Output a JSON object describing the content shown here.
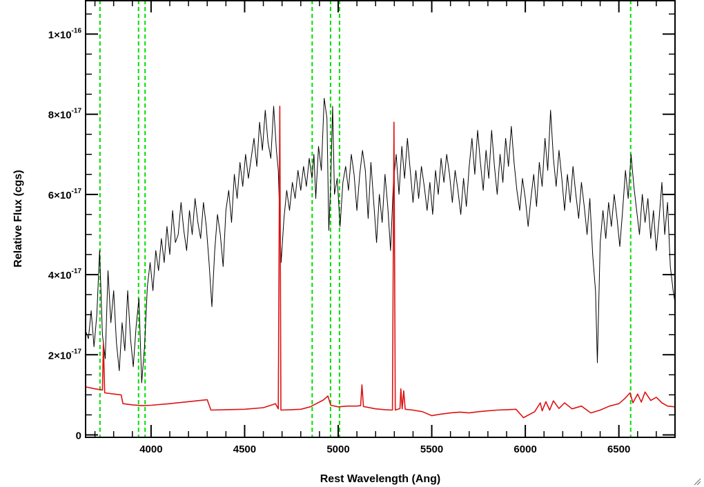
{
  "chart_data": {
    "type": "line",
    "xlabel": "Rest Wavelength (Ang)",
    "ylabel": "Relative Flux (cgs)",
    "xlim": [
      3650,
      6800
    ],
    "ylim": [
      -6e-19,
      1.085e-16
    ],
    "x_ticks": [
      {
        "value": 4000,
        "label": "4000"
      },
      {
        "value": 4500,
        "label": "4500"
      },
      {
        "value": 5000,
        "label": "5000"
      },
      {
        "value": 5500,
        "label": "5500"
      },
      {
        "value": 6000,
        "label": "6000"
      },
      {
        "value": 6500,
        "label": "6500"
      }
    ],
    "y_ticks": [
      {
        "value": 0,
        "mantissa": "0",
        "exponent": ""
      },
      {
        "value": 2e-17,
        "mantissa": "2×10",
        "exponent": "-17"
      },
      {
        "value": 4e-17,
        "mantissa": "4×10",
        "exponent": "-17"
      },
      {
        "value": 6e-17,
        "mantissa": "6×10",
        "exponent": "-17"
      },
      {
        "value": 8e-17,
        "mantissa": "8×10",
        "exponent": "-17"
      },
      {
        "value": 1e-16,
        "mantissa": "1×10",
        "exponent": "-16"
      }
    ],
    "reference_lines": [
      3727,
      3933,
      3968,
      4861,
      4959,
      5007,
      6563
    ],
    "reference_line_color": "#00dd00",
    "series": [
      {
        "color": "#000000",
        "points": [
          [
            3650,
            2.6
          ],
          [
            3665,
            2.4
          ],
          [
            3680,
            3.1
          ],
          [
            3695,
            2.2
          ],
          [
            3710,
            3.0
          ],
          [
            3725,
            4.6
          ],
          [
            3740,
            2.5
          ],
          [
            3755,
            1.9
          ],
          [
            3770,
            4.1
          ],
          [
            3785,
            2.8
          ],
          [
            3800,
            3.6
          ],
          [
            3815,
            2.3
          ],
          [
            3830,
            1.6
          ],
          [
            3845,
            2.8
          ],
          [
            3860,
            2.1
          ],
          [
            3875,
            3.6
          ],
          [
            3890,
            2.4
          ],
          [
            3905,
            1.7
          ],
          [
            3920,
            2.7
          ],
          [
            3935,
            3.4
          ],
          [
            3950,
            1.3
          ],
          [
            3965,
            2.2
          ],
          [
            3980,
            3.7
          ],
          [
            3995,
            4.3
          ],
          [
            4010,
            3.6
          ],
          [
            4025,
            4.6
          ],
          [
            4040,
            4.1
          ],
          [
            4055,
            4.9
          ],
          [
            4070,
            4.3
          ],
          [
            4085,
            5.2
          ],
          [
            4100,
            4.5
          ],
          [
            4115,
            5.6
          ],
          [
            4130,
            4.8
          ],
          [
            4145,
            5.0
          ],
          [
            4160,
            5.8
          ],
          [
            4175,
            5.1
          ],
          [
            4190,
            4.6
          ],
          [
            4205,
            5.6
          ],
          [
            4220,
            5.0
          ],
          [
            4235,
            5.9
          ],
          [
            4250,
            5.3
          ],
          [
            4265,
            4.9
          ],
          [
            4280,
            5.8
          ],
          [
            4295,
            5.2
          ],
          [
            4310,
            4.3
          ],
          [
            4325,
            3.2
          ],
          [
            4340,
            4.6
          ],
          [
            4355,
            5.5
          ],
          [
            4370,
            5.0
          ],
          [
            4385,
            4.2
          ],
          [
            4400,
            5.6
          ],
          [
            4415,
            6.1
          ],
          [
            4430,
            5.3
          ],
          [
            4445,
            6.5
          ],
          [
            4460,
            5.9
          ],
          [
            4475,
            6.8
          ],
          [
            4490,
            6.2
          ],
          [
            4505,
            7.0
          ],
          [
            4520,
            6.4
          ],
          [
            4535,
            6.9
          ],
          [
            4550,
            7.4
          ],
          [
            4565,
            6.7
          ],
          [
            4580,
            7.8
          ],
          [
            4595,
            7.1
          ],
          [
            4610,
            8.1
          ],
          [
            4625,
            7.3
          ],
          [
            4640,
            6.9
          ],
          [
            4655,
            8.2
          ],
          [
            4670,
            7.1
          ],
          [
            4680,
            6.6
          ],
          [
            4695,
            4.3
          ],
          [
            4710,
            5.4
          ],
          [
            4725,
            6.1
          ],
          [
            4740,
            5.6
          ],
          [
            4755,
            6.3
          ],
          [
            4770,
            5.9
          ],
          [
            4785,
            6.6
          ],
          [
            4800,
            6.1
          ],
          [
            4815,
            6.7
          ],
          [
            4830,
            6.2
          ],
          [
            4845,
            6.9
          ],
          [
            4860,
            6.4
          ],
          [
            4870,
            7.0
          ],
          [
            4880,
            5.9
          ],
          [
            4895,
            7.2
          ],
          [
            4910,
            6.6
          ],
          [
            4925,
            8.4
          ],
          [
            4940,
            7.9
          ],
          [
            4950,
            5.1
          ],
          [
            4960,
            6.3
          ],
          [
            4970,
            8.2
          ],
          [
            4980,
            6.0
          ],
          [
            4995,
            6.4
          ],
          [
            5010,
            5.2
          ],
          [
            5025,
            6.3
          ],
          [
            5040,
            6.7
          ],
          [
            5055,
            6.1
          ],
          [
            5070,
            7.0
          ],
          [
            5085,
            6.5
          ],
          [
            5100,
            5.6
          ],
          [
            5115,
            6.5
          ],
          [
            5130,
            7.1
          ],
          [
            5145,
            6.6
          ],
          [
            5160,
            5.4
          ],
          [
            5175,
            6.8
          ],
          [
            5190,
            5.8
          ],
          [
            5205,
            4.8
          ],
          [
            5220,
            6.0
          ],
          [
            5235,
            5.3
          ],
          [
            5250,
            6.5
          ],
          [
            5265,
            5.7
          ],
          [
            5280,
            4.6
          ],
          [
            5295,
            6.3
          ],
          [
            5310,
            7.0
          ],
          [
            5325,
            6.0
          ],
          [
            5340,
            7.2
          ],
          [
            5355,
            6.4
          ],
          [
            5370,
            7.4
          ],
          [
            5385,
            6.6
          ],
          [
            5400,
            5.8
          ],
          [
            5415,
            6.6
          ],
          [
            5430,
            5.9
          ],
          [
            5445,
            6.7
          ],
          [
            5460,
            6.2
          ],
          [
            5475,
            5.6
          ],
          [
            5490,
            6.3
          ],
          [
            5505,
            5.5
          ],
          [
            5520,
            6.6
          ],
          [
            5535,
            6.0
          ],
          [
            5550,
            6.9
          ],
          [
            5565,
            6.3
          ],
          [
            5580,
            7.0
          ],
          [
            5595,
            6.5
          ],
          [
            5610,
            5.8
          ],
          [
            5625,
            6.6
          ],
          [
            5640,
            6.1
          ],
          [
            5655,
            5.5
          ],
          [
            5670,
            6.4
          ],
          [
            5685,
            5.7
          ],
          [
            5700,
            6.7
          ],
          [
            5715,
            7.4
          ],
          [
            5730,
            6.5
          ],
          [
            5745,
            7.6
          ],
          [
            5760,
            6.8
          ],
          [
            5775,
            6.1
          ],
          [
            5790,
            7.1
          ],
          [
            5805,
            6.4
          ],
          [
            5820,
            7.6
          ],
          [
            5835,
            6.7
          ],
          [
            5850,
            6.0
          ],
          [
            5865,
            7.0
          ],
          [
            5880,
            6.3
          ],
          [
            5895,
            7.4
          ],
          [
            5910,
            6.7
          ],
          [
            5925,
            7.7
          ],
          [
            5940,
            6.8
          ],
          [
            5955,
            6.1
          ],
          [
            5970,
            5.6
          ],
          [
            5985,
            6.4
          ],
          [
            6000,
            5.9
          ],
          [
            6015,
            5.2
          ],
          [
            6030,
            5.9
          ],
          [
            6045,
            6.5
          ],
          [
            6060,
            5.7
          ],
          [
            6075,
            6.8
          ],
          [
            6090,
            6.2
          ],
          [
            6105,
            7.4
          ],
          [
            6120,
            6.6
          ],
          [
            6135,
            8.1
          ],
          [
            6150,
            6.9
          ],
          [
            6165,
            6.2
          ],
          [
            6180,
            7.1
          ],
          [
            6195,
            6.4
          ],
          [
            6210,
            5.6
          ],
          [
            6225,
            6.5
          ],
          [
            6240,
            5.8
          ],
          [
            6255,
            6.7
          ],
          [
            6270,
            6.0
          ],
          [
            6285,
            5.4
          ],
          [
            6300,
            6.3
          ],
          [
            6315,
            5.7
          ],
          [
            6330,
            5.0
          ],
          [
            6345,
            5.9
          ],
          [
            6360,
            4.5
          ],
          [
            6375,
            3.6
          ],
          [
            6385,
            1.8
          ],
          [
            6400,
            4.8
          ],
          [
            6415,
            5.6
          ],
          [
            6430,
            4.9
          ],
          [
            6445,
            5.8
          ],
          [
            6460,
            5.2
          ],
          [
            6475,
            6.0
          ],
          [
            6490,
            5.4
          ],
          [
            6505,
            4.7
          ],
          [
            6520,
            5.6
          ],
          [
            6535,
            6.6
          ],
          [
            6550,
            5.9
          ],
          [
            6565,
            7.0
          ],
          [
            6580,
            6.2
          ],
          [
            6595,
            5.6
          ],
          [
            6610,
            5.0
          ],
          [
            6625,
            6.0
          ],
          [
            6640,
            5.3
          ],
          [
            6655,
            5.9
          ],
          [
            6670,
            4.9
          ],
          [
            6685,
            5.6
          ],
          [
            6700,
            4.6
          ],
          [
            6715,
            5.4
          ],
          [
            6730,
            6.3
          ],
          [
            6745,
            5.0
          ],
          [
            6760,
            5.8
          ],
          [
            6775,
            4.2
          ],
          [
            6790,
            3.6
          ],
          [
            6800,
            3.3
          ]
        ]
      },
      {
        "color": "#dd1111",
        "points": [
          [
            3650,
            1.2
          ],
          [
            3700,
            1.15
          ],
          [
            3740,
            1.12
          ],
          [
            3745,
            2.3
          ],
          [
            3752,
            1.05
          ],
          [
            3800,
            1.02
          ],
          [
            3840,
            1.0
          ],
          [
            3850,
            0.78
          ],
          [
            3900,
            0.75
          ],
          [
            3950,
            0.73
          ],
          [
            4000,
            0.74
          ],
          [
            4100,
            0.78
          ],
          [
            4200,
            0.83
          ],
          [
            4300,
            0.88
          ],
          [
            4320,
            0.62
          ],
          [
            4400,
            0.63
          ],
          [
            4500,
            0.64
          ],
          [
            4600,
            0.68
          ],
          [
            4665,
            0.78
          ],
          [
            4680,
            0.65
          ],
          [
            4688,
            8.2
          ],
          [
            4694,
            0.62
          ],
          [
            4750,
            0.63
          ],
          [
            4800,
            0.64
          ],
          [
            4850,
            0.7
          ],
          [
            4920,
            0.87
          ],
          [
            4945,
            0.97
          ],
          [
            4960,
            0.74
          ],
          [
            5000,
            0.7
          ],
          [
            5050,
            0.72
          ],
          [
            5100,
            0.72
          ],
          [
            5120,
            0.73
          ],
          [
            5127,
            1.25
          ],
          [
            5135,
            0.71
          ],
          [
            5200,
            0.65
          ],
          [
            5250,
            0.63
          ],
          [
            5290,
            0.62
          ],
          [
            5298,
            7.8
          ],
          [
            5305,
            0.62
          ],
          [
            5330,
            0.66
          ],
          [
            5335,
            1.15
          ],
          [
            5342,
            0.65
          ],
          [
            5350,
            1.1
          ],
          [
            5358,
            0.64
          ],
          [
            5400,
            0.62
          ],
          [
            5450,
            0.58
          ],
          [
            5500,
            0.48
          ],
          [
            5550,
            0.52
          ],
          [
            5600,
            0.55
          ],
          [
            5650,
            0.57
          ],
          [
            5700,
            0.55
          ],
          [
            5750,
            0.58
          ],
          [
            5800,
            0.6
          ],
          [
            5850,
            0.62
          ],
          [
            5900,
            0.63
          ],
          [
            5950,
            0.64
          ],
          [
            5990,
            0.43
          ],
          [
            6050,
            0.58
          ],
          [
            6080,
            0.8
          ],
          [
            6090,
            0.6
          ],
          [
            6110,
            0.83
          ],
          [
            6130,
            0.62
          ],
          [
            6150,
            0.85
          ],
          [
            6180,
            0.66
          ],
          [
            6210,
            0.8
          ],
          [
            6250,
            0.65
          ],
          [
            6300,
            0.72
          ],
          [
            6350,
            0.55
          ],
          [
            6400,
            0.62
          ],
          [
            6450,
            0.72
          ],
          [
            6500,
            0.78
          ],
          [
            6530,
            0.9
          ],
          [
            6560,
            1.05
          ],
          [
            6575,
            0.8
          ],
          [
            6600,
            1.02
          ],
          [
            6620,
            0.82
          ],
          [
            6640,
            1.07
          ],
          [
            6670,
            0.86
          ],
          [
            6700,
            0.94
          ],
          [
            6730,
            0.8
          ],
          [
            6760,
            0.72
          ],
          [
            6800,
            0.7
          ]
        ]
      }
    ],
    "y_value_scale": 1e-17,
    "grid": false
  }
}
